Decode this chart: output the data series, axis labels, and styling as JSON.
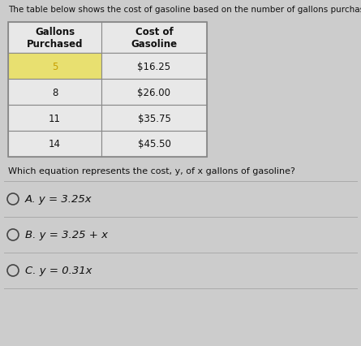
{
  "title": "The table below shows the cost of gasoline based on the number of gallons purchased.",
  "col_headers": [
    "Gallons\nPurchased",
    "Cost of\nGasoline"
  ],
  "table_data": [
    [
      "5",
      "$16.25"
    ],
    [
      "8",
      "$26.00"
    ],
    [
      "11",
      "$35.75"
    ],
    [
      "14",
      "$45.50"
    ]
  ],
  "highlight_row": 0,
  "highlight_color": "#e8e070",
  "highlight_text_color": "#c8a000",
  "row_bg_color": "#e8e8e8",
  "question": "Which equation represents the cost, y, of x gallons of gasoline?",
  "choices": [
    "A. y = 3.25x",
    "B. y = 3.25 + x",
    "C. y = 0.31x"
  ],
  "bg_color": "#cccccc",
  "table_bg": "#e8e8e8",
  "header_bg": "#e8e8e8",
  "text_color": "#111111",
  "border_color": "#888888",
  "title_fontsize": 7.5,
  "table_fontsize": 8.5,
  "question_fontsize": 8.0,
  "choice_fontsize": 9.5,
  "separator_color": "#aaaaaa"
}
